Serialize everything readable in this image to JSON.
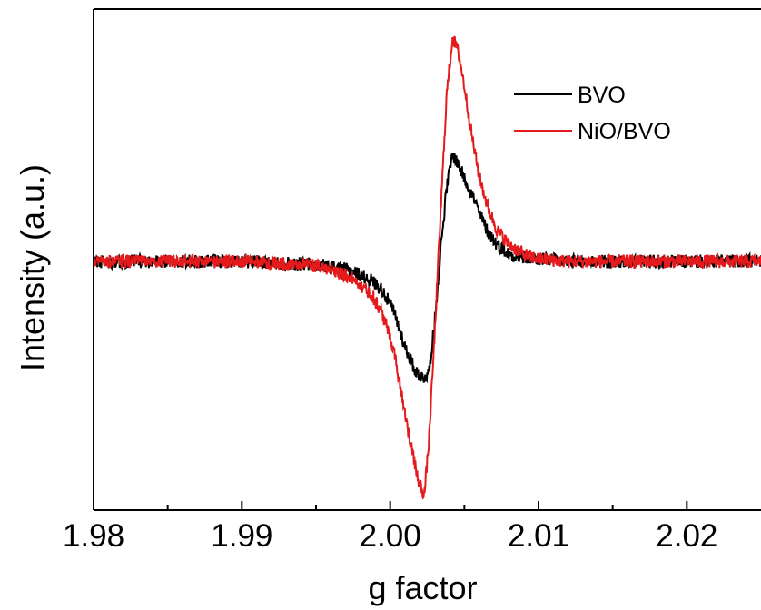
{
  "chart_data": {
    "type": "line",
    "title": "",
    "xlabel": "g factor",
    "ylabel": "Intensity (a.u.)",
    "xlim": [
      1.98,
      2.025
    ],
    "ylim": [
      -1.0,
      1.0
    ],
    "grid": false,
    "y_ticks_labeled": false,
    "legend_position": "top-right",
    "x_ticks": [
      {
        "value": 1.98,
        "label": "1.98"
      },
      {
        "value": 1.99,
        "label": "1.99"
      },
      {
        "value": 2.0,
        "label": "2.00"
      },
      {
        "value": 2.01,
        "label": "2.01"
      },
      {
        "value": 2.02,
        "label": "2.02"
      }
    ],
    "x_minor_ticks": [
      1.985,
      1.995,
      2.005,
      2.015
    ],
    "noise_amplitude": 0.028,
    "series": [
      {
        "name": "BVO",
        "color": "#000000",
        "points": [
          [
            1.98,
            0.0
          ],
          [
            1.99,
            0.0
          ],
          [
            1.994,
            -0.01
          ],
          [
            1.996,
            -0.02
          ],
          [
            1.9975,
            -0.04
          ],
          [
            1.9988,
            -0.08
          ],
          [
            1.9995,
            -0.12
          ],
          [
            2.0002,
            -0.2
          ],
          [
            2.001,
            -0.35
          ],
          [
            2.0017,
            -0.45
          ],
          [
            2.0022,
            -0.48
          ],
          [
            2.0026,
            -0.46
          ],
          [
            2.003,
            -0.25
          ],
          [
            2.0034,
            0.05
          ],
          [
            2.0038,
            0.3
          ],
          [
            2.0042,
            0.44
          ],
          [
            2.0046,
            0.4
          ],
          [
            2.005,
            0.34
          ],
          [
            2.0055,
            0.28
          ],
          [
            2.006,
            0.2
          ],
          [
            2.0066,
            0.12
          ],
          [
            2.0072,
            0.07
          ],
          [
            2.008,
            0.03
          ],
          [
            2.009,
            0.015
          ],
          [
            2.01,
            0.01
          ],
          [
            2.012,
            0.0
          ],
          [
            2.025,
            0.0
          ]
        ]
      },
      {
        "name": "NiO/BVO",
        "color": "#e41a1c",
        "points": [
          [
            1.98,
            0.0
          ],
          [
            1.99,
            0.0
          ],
          [
            1.994,
            -0.01
          ],
          [
            1.996,
            -0.03
          ],
          [
            1.9975,
            -0.07
          ],
          [
            1.9988,
            -0.14
          ],
          [
            1.9995,
            -0.22
          ],
          [
            2.0002,
            -0.35
          ],
          [
            2.0008,
            -0.55
          ],
          [
            2.0014,
            -0.76
          ],
          [
            2.0019,
            -0.9
          ],
          [
            2.0023,
            -0.96
          ],
          [
            2.0026,
            -0.75
          ],
          [
            2.003,
            -0.3
          ],
          [
            2.0034,
            0.2
          ],
          [
            2.0038,
            0.68
          ],
          [
            2.0042,
            0.92
          ],
          [
            2.0046,
            0.86
          ],
          [
            2.005,
            0.72
          ],
          [
            2.0055,
            0.52
          ],
          [
            2.006,
            0.35
          ],
          [
            2.0066,
            0.22
          ],
          [
            2.0072,
            0.13
          ],
          [
            2.008,
            0.07
          ],
          [
            2.009,
            0.03
          ],
          [
            2.01,
            0.01
          ],
          [
            2.012,
            0.0
          ],
          [
            2.025,
            0.0
          ]
        ]
      }
    ]
  }
}
